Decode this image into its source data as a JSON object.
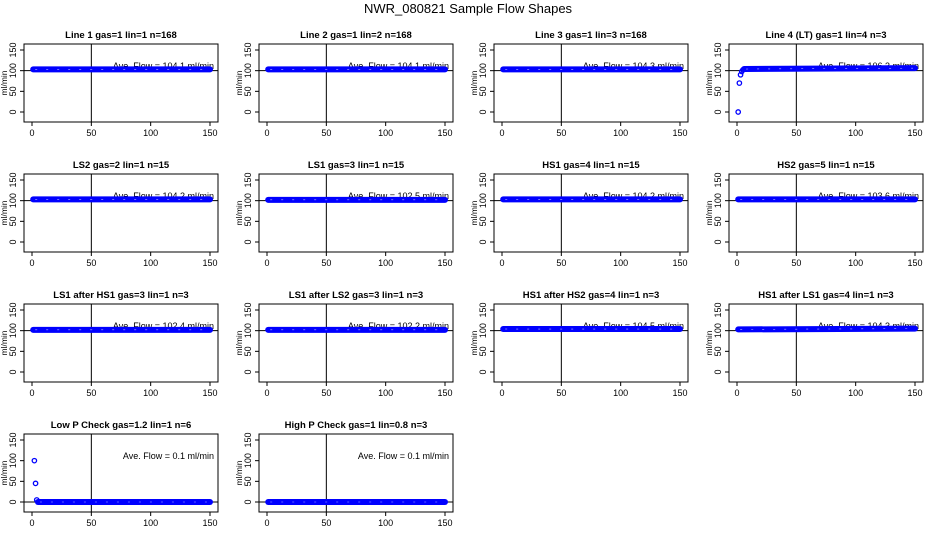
{
  "figure_title": "NWR_080821  Sample Flow Shapes",
  "chart_data": [
    {
      "type": "scatter",
      "title": "Line 1 gas=1 lin=1 n=168",
      "ylabel": "ml/min",
      "xlim": [
        0,
        150
      ],
      "ylim": [
        0,
        150
      ],
      "xticks": [
        0,
        50,
        100,
        150
      ],
      "yticks": [
        0,
        50,
        100,
        150
      ],
      "ref_line_x": 50,
      "ref_line_y": 100,
      "flow_label": "Ave. Flow =  104.1  ml/min",
      "series": [
        {
          "x": [
            1,
            150
          ],
          "y": [
            103,
            103
          ],
          "kind": "band",
          "color": "#0000ff"
        }
      ]
    },
    {
      "type": "scatter",
      "title": "Line 2 gas=1 lin=2 n=168",
      "ylabel": "ml/min",
      "xlim": [
        0,
        150
      ],
      "ylim": [
        0,
        150
      ],
      "xticks": [
        0,
        50,
        100,
        150
      ],
      "yticks": [
        0,
        50,
        100,
        150
      ],
      "ref_line_x": 50,
      "ref_line_y": 100,
      "flow_label": "Ave. Flow =  104.1  ml/min",
      "series": [
        {
          "x": [
            1,
            150
          ],
          "y": [
            103,
            103
          ],
          "kind": "band",
          "color": "#0000ff"
        }
      ]
    },
    {
      "type": "scatter",
      "title": "Line 3 gas=1 lin=3 n=168",
      "ylabel": "ml/min",
      "xlim": [
        0,
        150
      ],
      "ylim": [
        0,
        150
      ],
      "xticks": [
        0,
        50,
        100,
        150
      ],
      "yticks": [
        0,
        50,
        100,
        150
      ],
      "ref_line_x": 50,
      "ref_line_y": 100,
      "flow_label": "Ave. Flow =  104.3  ml/min",
      "series": [
        {
          "x": [
            1,
            150
          ],
          "y": [
            103,
            103
          ],
          "kind": "band",
          "color": "#0000ff"
        }
      ]
    },
    {
      "type": "scatter",
      "title": "Line 4 (LT) gas=1 lin=4 n=3",
      "ylabel": "ml/min",
      "xlim": [
        0,
        150
      ],
      "ylim": [
        0,
        150
      ],
      "xticks": [
        0,
        50,
        100,
        150
      ],
      "yticks": [
        0,
        50,
        100,
        150
      ],
      "ref_line_x": 50,
      "ref_line_y": 100,
      "flow_label": "Ave. Flow =  106.3  ml/min",
      "series": [
        {
          "x": [
            6,
            150
          ],
          "y": [
            104,
            106
          ],
          "kind": "band",
          "color": "#0000ff"
        },
        {
          "x": [
            1,
            2,
            3,
            4,
            5
          ],
          "y": [
            0,
            70,
            90,
            98,
            102
          ],
          "kind": "points",
          "color": "#0000ff"
        }
      ]
    },
    {
      "type": "scatter",
      "title": "LS2 gas=2 lin=1 n=15",
      "ylabel": "ml/min",
      "xlim": [
        0,
        150
      ],
      "ylim": [
        0,
        150
      ],
      "xticks": [
        0,
        50,
        100,
        150
      ],
      "yticks": [
        0,
        50,
        100,
        150
      ],
      "ref_line_x": 50,
      "ref_line_y": 100,
      "flow_label": "Ave. Flow =  104.2  ml/min",
      "series": [
        {
          "x": [
            1,
            150
          ],
          "y": [
            103,
            103
          ],
          "kind": "band",
          "color": "#0000ff"
        }
      ]
    },
    {
      "type": "scatter",
      "title": "LS1 gas=3 lin=1 n=15",
      "ylabel": "ml/min",
      "xlim": [
        0,
        150
      ],
      "ylim": [
        0,
        150
      ],
      "xticks": [
        0,
        50,
        100,
        150
      ],
      "yticks": [
        0,
        50,
        100,
        150
      ],
      "ref_line_x": 50,
      "ref_line_y": 100,
      "flow_label": "Ave. Flow =  102.5  ml/min",
      "series": [
        {
          "x": [
            1,
            150
          ],
          "y": [
            102,
            102
          ],
          "kind": "band",
          "color": "#0000ff"
        }
      ]
    },
    {
      "type": "scatter",
      "title": "HS1 gas=4 lin=1 n=15",
      "ylabel": "ml/min",
      "xlim": [
        0,
        150
      ],
      "ylim": [
        0,
        150
      ],
      "xticks": [
        0,
        50,
        100,
        150
      ],
      "yticks": [
        0,
        50,
        100,
        150
      ],
      "ref_line_x": 50,
      "ref_line_y": 100,
      "flow_label": "Ave. Flow =  104.2  ml/min",
      "series": [
        {
          "x": [
            1,
            150
          ],
          "y": [
            103,
            103
          ],
          "kind": "band",
          "color": "#0000ff"
        }
      ]
    },
    {
      "type": "scatter",
      "title": "HS2 gas=5 lin=1 n=15",
      "ylabel": "ml/min",
      "xlim": [
        0,
        150
      ],
      "ylim": [
        0,
        150
      ],
      "xticks": [
        0,
        50,
        100,
        150
      ],
      "yticks": [
        0,
        50,
        100,
        150
      ],
      "ref_line_x": 50,
      "ref_line_y": 100,
      "flow_label": "Ave. Flow =  103.6  ml/min",
      "series": [
        {
          "x": [
            1,
            150
          ],
          "y": [
            103,
            103
          ],
          "kind": "band",
          "color": "#0000ff"
        }
      ]
    },
    {
      "type": "scatter",
      "title": "LS1 after HS1 gas=3 lin=1 n=3",
      "ylabel": "ml/min",
      "xlim": [
        0,
        150
      ],
      "ylim": [
        0,
        150
      ],
      "xticks": [
        0,
        50,
        100,
        150
      ],
      "yticks": [
        0,
        50,
        100,
        150
      ],
      "ref_line_x": 50,
      "ref_line_y": 100,
      "flow_label": "Ave. Flow =  102.4  ml/min",
      "series": [
        {
          "x": [
            1,
            150
          ],
          "y": [
            102,
            102
          ],
          "kind": "band",
          "color": "#0000ff"
        }
      ]
    },
    {
      "type": "scatter",
      "title": "LS1 after LS2 gas=3 lin=1 n=3",
      "ylabel": "ml/min",
      "xlim": [
        0,
        150
      ],
      "ylim": [
        0,
        150
      ],
      "xticks": [
        0,
        50,
        100,
        150
      ],
      "yticks": [
        0,
        50,
        100,
        150
      ],
      "ref_line_x": 50,
      "ref_line_y": 100,
      "flow_label": "Ave. Flow =  102.2  ml/min",
      "series": [
        {
          "x": [
            1,
            150
          ],
          "y": [
            102,
            102
          ],
          "kind": "band",
          "color": "#0000ff"
        }
      ]
    },
    {
      "type": "scatter",
      "title": "HS1 after HS2 gas=4 lin=1 n=3",
      "ylabel": "ml/min",
      "xlim": [
        0,
        150
      ],
      "ylim": [
        0,
        150
      ],
      "xticks": [
        0,
        50,
        100,
        150
      ],
      "yticks": [
        0,
        50,
        100,
        150
      ],
      "ref_line_x": 50,
      "ref_line_y": 100,
      "flow_label": "Ave. Flow =  104.5  ml/min",
      "series": [
        {
          "x": [
            1,
            150
          ],
          "y": [
            104,
            104
          ],
          "kind": "band",
          "color": "#0000ff"
        }
      ]
    },
    {
      "type": "scatter",
      "title": "HS1 after LS1 gas=4 lin=1 n=3",
      "ylabel": "ml/min",
      "xlim": [
        0,
        150
      ],
      "ylim": [
        0,
        150
      ],
      "xticks": [
        0,
        50,
        100,
        150
      ],
      "yticks": [
        0,
        50,
        100,
        150
      ],
      "ref_line_x": 50,
      "ref_line_y": 100,
      "flow_label": "Ave. Flow =  104.3  ml/min",
      "series": [
        {
          "x": [
            1,
            150
          ],
          "y": [
            103,
            105
          ],
          "kind": "band",
          "color": "#0000ff"
        }
      ]
    },
    {
      "type": "scatter",
      "title": "Low P Check gas=1.2 lin=1 n=6",
      "ylabel": "ml/min",
      "xlim": [
        0,
        150
      ],
      "ylim": [
        0,
        150
      ],
      "xticks": [
        0,
        50,
        100,
        150
      ],
      "yticks": [
        0,
        50,
        100,
        150
      ],
      "ref_line_x": 50,
      "ref_line_y": 0,
      "flow_label": "Ave. Flow =  0.1  ml/min",
      "series": [
        {
          "x": [
            5,
            150
          ],
          "y": [
            0,
            0
          ],
          "kind": "band",
          "color": "#0000ff"
        },
        {
          "x": [
            2,
            3,
            4
          ],
          "y": [
            100,
            45,
            5
          ],
          "kind": "points",
          "color": "#0000ff"
        }
      ]
    },
    {
      "type": "scatter",
      "title": "High P Check gas=1 lin=0.8 n=3",
      "ylabel": "ml/min",
      "xlim": [
        0,
        150
      ],
      "ylim": [
        0,
        150
      ],
      "xticks": [
        0,
        50,
        100,
        150
      ],
      "yticks": [
        0,
        50,
        100,
        150
      ],
      "ref_line_x": 50,
      "ref_line_y": 0,
      "flow_label": "Ave. Flow =  0.1  ml/min",
      "series": [
        {
          "x": [
            1,
            150
          ],
          "y": [
            0,
            0
          ],
          "kind": "band",
          "color": "#0000ff"
        }
      ]
    }
  ]
}
